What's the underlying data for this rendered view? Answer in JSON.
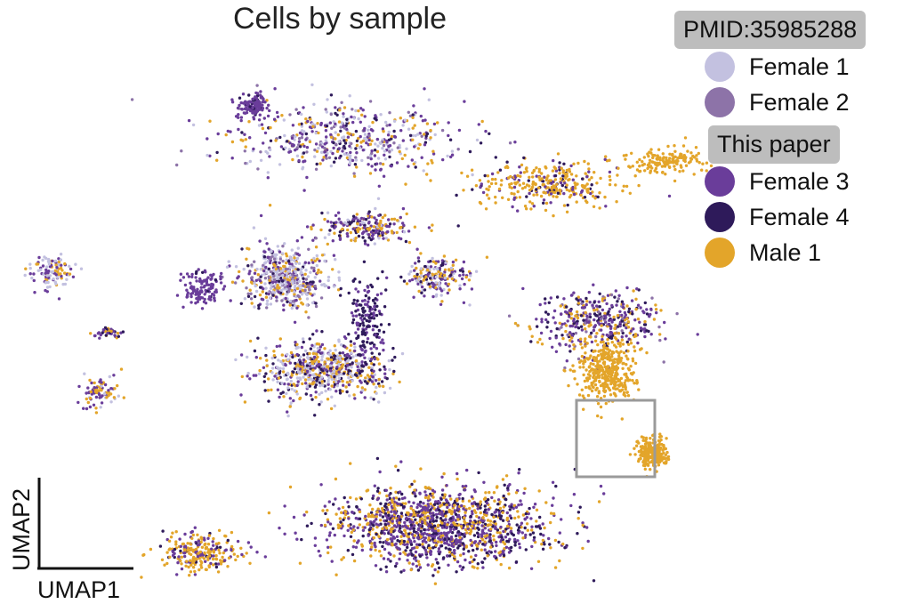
{
  "chart_data": {
    "type": "scatter",
    "title": "Cells by sample",
    "xlabel": "UMAP1",
    "ylabel": "UMAP2",
    "axis_style": "arrow-less corner bar, no ticks",
    "legend": {
      "groups": [
        {
          "header": "PMID:35985288",
          "entries": [
            {
              "label": "Female 1",
              "color": "#c3c1e0"
            },
            {
              "label": "Female 2",
              "color": "#8d73a8"
            }
          ]
        },
        {
          "header": "This paper",
          "entries": [
            {
              "label": "Female 3",
              "color": "#6a3d9a"
            },
            {
              "label": "Female 4",
              "color": "#2e1a5a"
            },
            {
              "label": "Male 1",
              "color": "#e3a52a"
            }
          ]
        }
      ]
    },
    "highlight": "isolated Male 1 cluster outlined with a grey box",
    "clusters": [
      {
        "name": "top-left",
        "cx": 2.0,
        "cy": 8.3,
        "sx": 1.6,
        "sy": 0.6,
        "n": 520,
        "mix": {
          "Female 1": 0.25,
          "Female 2": 0.1,
          "Female 3": 0.35,
          "Female 4": 0.12,
          "Male 1": 0.18
        }
      },
      {
        "name": "top-left-tip",
        "cx": 0.5,
        "cy": 8.9,
        "sx": 0.2,
        "sy": 0.2,
        "n": 120,
        "mix": {
          "Female 3": 0.9,
          "Female 4": 0.1
        }
      },
      {
        "name": "top-middle-right",
        "cx": 5.2,
        "cy": 7.5,
        "sx": 1.1,
        "sy": 0.4,
        "n": 320,
        "mix": {
          "Male 1": 0.7,
          "Female 3": 0.2,
          "Female 4": 0.1
        }
      },
      {
        "name": "far-right-top",
        "cx": 7.0,
        "cy": 7.9,
        "sx": 0.5,
        "sy": 0.2,
        "n": 150,
        "mix": {
          "Male 1": 1.0
        }
      },
      {
        "name": "upper-center",
        "cx": 2.3,
        "cy": 6.7,
        "sx": 0.7,
        "sy": 0.25,
        "n": 220,
        "mix": {
          "Female 3": 0.4,
          "Female 4": 0.2,
          "Male 1": 0.3,
          "Female 1": 0.1
        }
      },
      {
        "name": "center-left",
        "cx": 1.0,
        "cy": 5.8,
        "sx": 0.6,
        "sy": 0.5,
        "n": 500,
        "mix": {
          "Female 1": 0.4,
          "Female 2": 0.15,
          "Female 3": 0.2,
          "Female 4": 0.1,
          "Male 1": 0.15
        }
      },
      {
        "name": "center-right",
        "cx": 3.4,
        "cy": 5.8,
        "sx": 0.4,
        "sy": 0.3,
        "n": 200,
        "mix": {
          "Female 3": 0.4,
          "Female 1": 0.2,
          "Male 1": 0.25,
          "Female 4": 0.15
        }
      },
      {
        "name": "center-lower",
        "cx": 1.6,
        "cy": 4.1,
        "sx": 0.9,
        "sy": 0.45,
        "n": 650,
        "mix": {
          "Female 1": 0.3,
          "Female 4": 0.2,
          "Female 3": 0.2,
          "Male 1": 0.3
        }
      },
      {
        "name": "center-stem",
        "cx": 2.3,
        "cy": 5.0,
        "sx": 0.3,
        "sy": 0.8,
        "n": 180,
        "mix": {
          "Female 4": 0.6,
          "Female 3": 0.4
        }
      },
      {
        "name": "left-small-1",
        "cx": -2.7,
        "cy": 5.9,
        "sx": 0.3,
        "sy": 0.25,
        "n": 110,
        "mix": {
          "Female 1": 0.4,
          "Female 3": 0.3,
          "Male 1": 0.3
        }
      },
      {
        "name": "left-small-2",
        "cx": -0.3,
        "cy": 5.6,
        "sx": 0.3,
        "sy": 0.3,
        "n": 120,
        "mix": {
          "Female 3": 0.9,
          "Female 4": 0.1
        }
      },
      {
        "name": "left-small-3",
        "cx": -1.8,
        "cy": 4.8,
        "sx": 0.2,
        "sy": 0.1,
        "n": 40,
        "mix": {
          "Female 3": 0.5,
          "Male 1": 0.3,
          "Female 4": 0.2
        }
      },
      {
        "name": "left-small-4",
        "cx": -1.9,
        "cy": 3.7,
        "sx": 0.25,
        "sy": 0.3,
        "n": 80,
        "mix": {
          "Female 3": 0.4,
          "Male 1": 0.4,
          "Female 1": 0.2
        }
      },
      {
        "name": "right-branch",
        "cx": 6.0,
        "cy": 5.0,
        "sx": 0.9,
        "sy": 0.5,
        "n": 400,
        "mix": {
          "Female 3": 0.4,
          "Female 4": 0.2,
          "Female 2": 0.15,
          "Male 1": 0.25
        }
      },
      {
        "name": "right-blob",
        "cx": 6.1,
        "cy": 4.1,
        "sx": 0.4,
        "sy": 0.55,
        "n": 380,
        "mix": {
          "Male 1": 1.0
        }
      },
      {
        "name": "isolated",
        "cx": 6.8,
        "cy": 2.6,
        "sx": 0.22,
        "sy": 0.22,
        "n": 260,
        "mix": {
          "Male 1": 1.0
        }
      },
      {
        "name": "bottom-left",
        "cx": -0.3,
        "cy": 0.8,
        "sx": 0.6,
        "sy": 0.3,
        "n": 240,
        "mix": {
          "Male 1": 0.6,
          "Female 3": 0.3,
          "Female 4": 0.1
        }
      },
      {
        "name": "bottom-main",
        "cx": 3.5,
        "cy": 1.3,
        "sx": 1.6,
        "sy": 0.65,
        "n": 1400,
        "mix": {
          "Female 3": 0.45,
          "Female 4": 0.25,
          "Male 1": 0.3
        }
      }
    ]
  }
}
